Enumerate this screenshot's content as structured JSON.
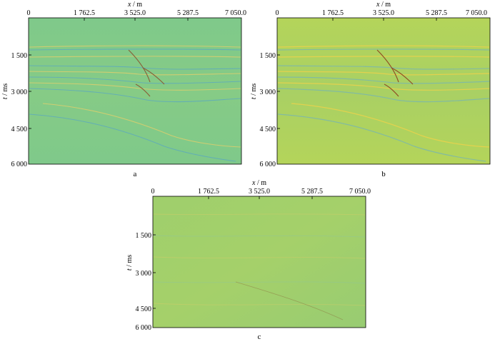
{
  "figure": {
    "panels": [
      {
        "label": "a",
        "x_axis_title_var": "x",
        "x_axis_title_unit": " / m",
        "y_axis_title_var": "t",
        "y_axis_title_unit": " / ms",
        "x_ticks": [
          "0",
          "1 762.5",
          "3 525.0",
          "5 287.5",
          "7 050.0"
        ],
        "y_ticks": [
          "1 500",
          "3 000",
          "4 500",
          "6 000"
        ],
        "colors": {
          "base": "#7fc98a",
          "warm": "#e8cf6a",
          "cool": "#5aa7c2",
          "dark": "#8a3a1c"
        }
      },
      {
        "label": "b",
        "x_axis_title_var": "x",
        "x_axis_title_unit": " / m",
        "y_axis_title_var": "t",
        "y_axis_title_unit": " / ms",
        "x_ticks": [
          "0",
          "1 762.5",
          "3 525.0",
          "5 287.5",
          "7 050.0"
        ],
        "y_ticks": [
          "1 500",
          "3 000",
          "4 500",
          "6 000"
        ],
        "colors": {
          "base": "#b4d45a",
          "warm": "#f0d24a",
          "cool": "#79b6b0",
          "dark": "#8a2d14"
        }
      },
      {
        "label": "c",
        "x_axis_title_var": "x",
        "x_axis_title_unit": " / m",
        "y_axis_title_var": "t",
        "y_axis_title_unit": " / ms",
        "x_ticks": [
          "0",
          "1 762.5",
          "3 525.0",
          "5 287.5",
          "7 050.0"
        ],
        "y_ticks": [
          "1 500",
          "3 000",
          "4 500",
          "6 000"
        ],
        "colors": {
          "base": "#9fcf6c",
          "warm": "#d8cd68",
          "cool": "#8cc4a0",
          "dark": "#8a6a3a"
        }
      }
    ]
  }
}
